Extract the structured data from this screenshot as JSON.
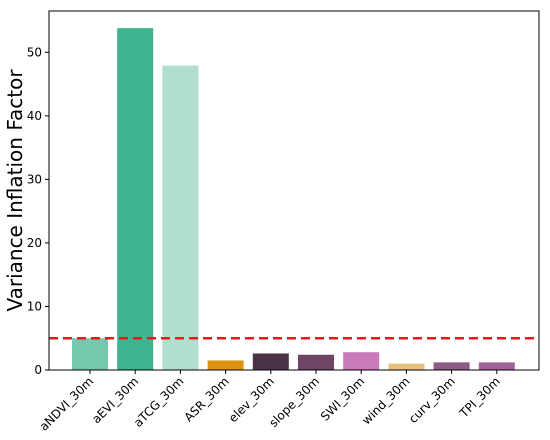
{
  "chart_data": {
    "type": "bar",
    "title": "",
    "xlabel": "",
    "ylabel": "Variance Inflation Factor",
    "ylim": [
      0,
      56.5
    ],
    "yticks": [
      0,
      10,
      20,
      30,
      40,
      50
    ],
    "grid": false,
    "categories": [
      "aNDVI_30m",
      "aEVI_30m",
      "aTCG_30m",
      "ASR_30m",
      "elev_30m",
      "slope_30m",
      "SWI_30m",
      "wind_30m",
      "curv_30m",
      "TPI_30m"
    ],
    "values": [
      5.0,
      53.8,
      47.9,
      1.5,
      2.6,
      2.4,
      2.8,
      1.0,
      1.2,
      1.2
    ],
    "colors": [
      "#73c8ad",
      "#3db38f",
      "#b0dfcf",
      "#de9412",
      "#4a3246",
      "#6d4663",
      "#c97ab9",
      "#e6c07c",
      "#8f5a86",
      "#a0649a"
    ],
    "threshold": {
      "value": 5,
      "color": "#e41a1c",
      "style": "dashed"
    }
  }
}
